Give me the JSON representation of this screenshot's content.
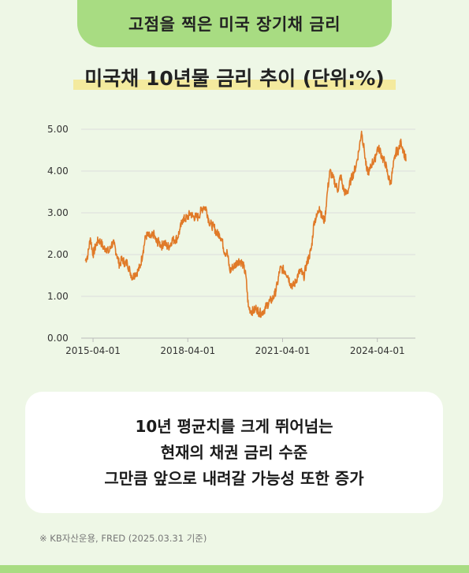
{
  "header": {
    "title": "고점을 찍은 미국 장기채 금리"
  },
  "chart_data": {
    "type": "line",
    "title": "미국채 10년물 금리 추이 (단위:%)",
    "ylim": [
      0,
      5
    ],
    "y_ticks": [
      "0.00",
      "1.00",
      "2.00",
      "3.00",
      "4.00",
      "5.00"
    ],
    "x_ticks": [
      "2015-04-01",
      "2018-04-01",
      "2021-04-01",
      "2024-04-01"
    ],
    "grid": "horizontal",
    "line_color": "#e07a28",
    "series": [
      {
        "x": [
          "2015-01-01",
          "2015-02-01",
          "2015-03-01",
          "2015-04-01",
          "2015-05-01",
          "2015-06-01",
          "2015-07-01",
          "2015-08-01",
          "2015-09-01",
          "2015-10-01",
          "2015-11-01",
          "2015-12-01",
          "2016-01-01",
          "2016-02-01",
          "2016-03-01",
          "2016-04-01",
          "2016-05-01",
          "2016-06-01",
          "2016-07-01",
          "2016-08-01",
          "2016-09-01",
          "2016-10-01",
          "2016-11-01",
          "2016-12-01",
          "2017-01-01",
          "2017-02-01",
          "2017-03-01",
          "2017-04-01",
          "2017-05-01",
          "2017-06-01",
          "2017-07-01",
          "2017-08-01",
          "2017-09-01",
          "2017-10-01",
          "2017-11-01",
          "2017-12-01",
          "2018-01-01",
          "2018-02-01",
          "2018-03-01",
          "2018-04-01",
          "2018-05-01",
          "2018-06-01",
          "2018-07-01",
          "2018-08-01",
          "2018-09-01",
          "2018-10-01",
          "2018-11-01",
          "2018-12-01",
          "2019-01-01",
          "2019-02-01",
          "2019-03-01",
          "2019-04-01",
          "2019-05-01",
          "2019-06-01",
          "2019-07-01",
          "2019-08-01",
          "2019-09-01",
          "2019-10-01",
          "2019-11-01",
          "2019-12-01",
          "2020-01-01",
          "2020-02-01",
          "2020-03-01",
          "2020-04-01",
          "2020-05-01",
          "2020-06-01",
          "2020-07-01",
          "2020-08-01",
          "2020-09-01",
          "2020-10-01",
          "2020-11-01",
          "2020-12-01",
          "2021-01-01",
          "2021-02-01",
          "2021-03-01",
          "2021-04-01",
          "2021-05-01",
          "2021-06-01",
          "2021-07-01",
          "2021-08-01",
          "2021-09-01",
          "2021-10-01",
          "2021-11-01",
          "2021-12-01",
          "2022-01-01",
          "2022-02-01",
          "2022-03-01",
          "2022-04-01",
          "2022-05-01",
          "2022-06-01",
          "2022-07-01",
          "2022-08-01",
          "2022-09-01",
          "2022-10-01",
          "2022-11-01",
          "2022-12-01",
          "2023-01-01",
          "2023-02-01",
          "2023-03-01",
          "2023-04-01",
          "2023-05-01",
          "2023-06-01",
          "2023-07-01",
          "2023-08-01",
          "2023-09-01",
          "2023-10-01",
          "2023-11-01",
          "2023-12-01",
          "2024-01-01",
          "2024-02-01",
          "2024-03-01",
          "2024-04-01",
          "2024-05-01",
          "2024-06-01",
          "2024-07-01",
          "2024-08-01",
          "2024-09-01",
          "2024-10-01",
          "2024-11-01",
          "2024-12-01",
          "2025-01-01",
          "2025-02-01",
          "2025-03-01"
        ],
        "values": [
          1.85,
          2.0,
          2.4,
          2.0,
          2.2,
          2.35,
          2.3,
          2.15,
          2.15,
          2.05,
          2.25,
          2.25,
          2.0,
          1.75,
          1.9,
          1.8,
          1.8,
          1.6,
          1.45,
          1.55,
          1.6,
          1.75,
          2.1,
          2.45,
          2.45,
          2.4,
          2.5,
          2.3,
          2.3,
          2.2,
          2.3,
          2.2,
          2.2,
          2.35,
          2.35,
          2.4,
          2.6,
          2.85,
          2.85,
          2.9,
          3.0,
          2.9,
          2.9,
          2.9,
          3.05,
          3.15,
          3.1,
          2.8,
          2.7,
          2.65,
          2.5,
          2.5,
          2.35,
          2.05,
          2.05,
          1.6,
          1.7,
          1.75,
          1.85,
          1.85,
          1.75,
          1.5,
          0.75,
          0.65,
          0.65,
          0.72,
          0.62,
          0.6,
          0.68,
          0.78,
          0.88,
          0.92,
          1.05,
          1.3,
          1.65,
          1.65,
          1.6,
          1.5,
          1.3,
          1.25,
          1.35,
          1.55,
          1.6,
          1.45,
          1.75,
          1.95,
          2.15,
          2.8,
          2.9,
          3.15,
          2.9,
          2.8,
          3.5,
          4.0,
          3.85,
          3.7,
          3.55,
          3.9,
          3.6,
          3.45,
          3.55,
          3.8,
          3.95,
          4.15,
          4.5,
          4.95,
          4.5,
          4.0,
          4.0,
          4.2,
          4.25,
          4.55,
          4.5,
          4.3,
          4.2,
          3.9,
          3.7,
          4.1,
          4.45,
          4.5,
          4.7,
          4.45,
          4.25
        ]
      }
    ]
  },
  "note": {
    "lines": [
      "10년 평균치를 크게 뛰어넘는",
      "현재의 채권 금리 수준",
      "그만큼 앞으로 내려갈 가능성 또한 증가"
    ]
  },
  "footer": {
    "source": "※ KB자산운용, FRED (2025.03.31 기준)"
  }
}
